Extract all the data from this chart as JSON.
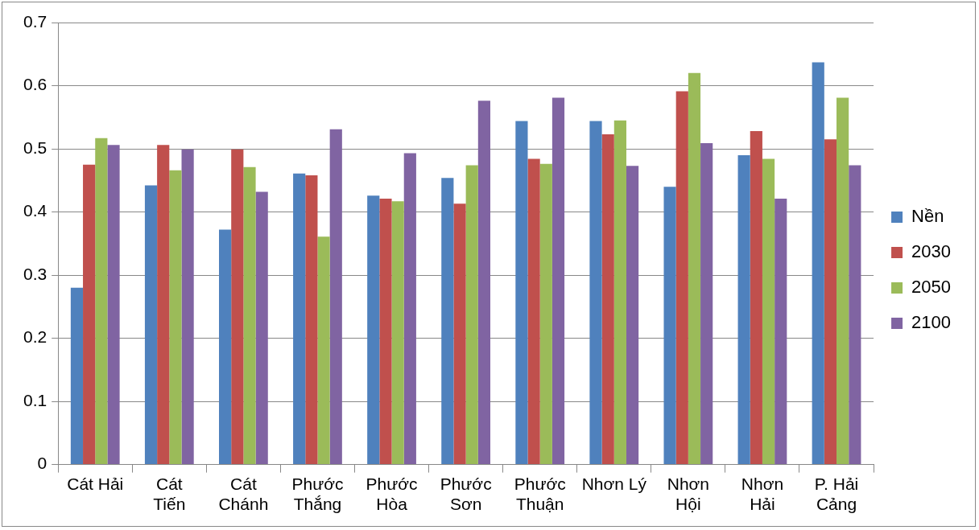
{
  "chart_data": {
    "type": "bar",
    "categories": [
      "Cát Hải",
      "Cát Tiến",
      "Cát Chánh",
      "Phước Thắng",
      "Phước Hòa",
      "Phước Sơn",
      "Phước Thuận",
      "Nhơn Lý",
      "Nhơn Hội",
      "Nhơn Hải",
      "P. Hải Cảng"
    ],
    "series": [
      {
        "name": "Nền",
        "color": "#4f81bd",
        "values": [
          0.28,
          0.442,
          0.372,
          0.461,
          0.426,
          0.454,
          0.544,
          0.544,
          0.44,
          0.49,
          0.637
        ]
      },
      {
        "name": "2030",
        "color": "#c0504d",
        "values": [
          0.475,
          0.506,
          0.499,
          0.458,
          0.421,
          0.413,
          0.484,
          0.523,
          0.591,
          0.528,
          0.515
        ]
      },
      {
        "name": "2050",
        "color": "#9bbb59",
        "values": [
          0.517,
          0.466,
          0.471,
          0.361,
          0.417,
          0.474,
          0.476,
          0.545,
          0.62,
          0.484,
          0.581
        ]
      },
      {
        "name": "2100",
        "color": "#8064a2",
        "values": [
          0.506,
          0.499,
          0.432,
          0.531,
          0.493,
          0.576,
          0.581,
          0.473,
          0.509,
          0.421,
          0.474
        ]
      }
    ],
    "ylim": [
      0,
      0.7
    ],
    "yticks": [
      0,
      0.1,
      0.2,
      0.3,
      0.4,
      0.5,
      0.6,
      0.7
    ],
    "grid": "y",
    "legend": "right"
  }
}
